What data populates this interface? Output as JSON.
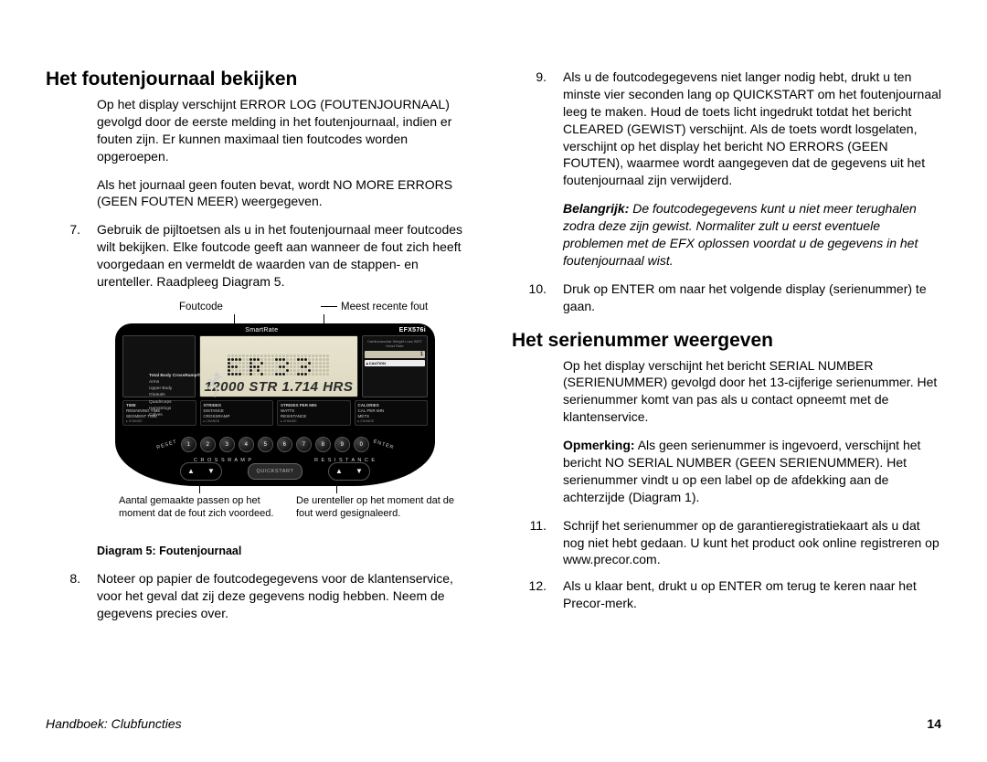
{
  "left": {
    "heading": "Het foutenjournaal bekijken",
    "p1": "Op het display verschijnt ERROR LOG (FOUTENJOURNAAL) gevolgd door de eerste melding in het foutenjournaal, indien er fouten zijn. Er kunnen maximaal tien foutcodes worden opgeroepen.",
    "p2": "Als het journaal geen fouten bevat, wordt NO MORE ERRORS (GEEN FOUTEN MEER) weergegeven.",
    "item7_num": "7.",
    "item7": "Gebruik de pijltoetsen als u in het foutenjournaal meer foutcodes wilt bekijken. Elke foutcode geeft aan wanneer de fout zich heeft voorgedaan en vermeldt de waarden van de stappen- en urenteller. Raadpleeg Diagram 5.",
    "diagram": {
      "top_left_label": "Foutcode",
      "top_right_label": "Meest recente fout",
      "bottom_left_label": "Aantal gemaakte passen op het moment dat de fout zich voordeed.",
      "bottom_right_label": "De urenteller op het moment dat de fout werd gesignaleerd.",
      "caption": "Diagram 5: Foutenjournaal",
      "topbar": {
        "smartrate": "SmartRate",
        "model": "EFX576i"
      },
      "legend_title": "Total Body CrossRamp®",
      "legend_lines": [
        "Arms",
        "Upper Body",
        "Gluteals",
        "Quadriceps",
        "Hamstrings",
        "Calves"
      ],
      "lcd_secondary": "12000 STR 1.714 HRS",
      "metrics_col1": [
        "TIME",
        "REMAINING TIME",
        "SEGMENT TIME"
      ],
      "metrics_col2": [
        "STRIDES",
        "DISTANCE",
        "CROSSRAMP"
      ],
      "metrics_col3": [
        "STRIDES PER MIN",
        "WATTS",
        "RESISTANCE"
      ],
      "metrics_col4": [
        "CALORIES",
        "CAL PER MIN",
        "METS"
      ],
      "metrics_change": "▸ CHANGE",
      "keys": [
        "1",
        "2",
        "3",
        "4",
        "5",
        "6",
        "7",
        "8",
        "9",
        "0"
      ],
      "reset": "RESET",
      "enter": "ENTER",
      "crossramp": "C R O S S R A M P",
      "resistance": "R E S I S T A N C E",
      "quickstart": "QUICKSTART",
      "caution": "▲CAUTION",
      "rblk_line": "Cardiovascular  Weight Loss  WDT  Heart Rate"
    },
    "item8_num": "8.",
    "item8": "Noteer op papier de foutcodegegevens voor de klantenservice, voor het geval dat zij deze gegevens nodig hebben. Neem de gegevens precies over."
  },
  "right": {
    "item9_num": "9.",
    "item9": "Als u de foutcodegegevens niet langer nodig hebt, drukt u ten minste vier seconden lang op QUICKSTART om het foutenjournaal leeg te maken. Houd de toets licht ingedrukt totdat het bericht CLEARED (GEWIST) verschijnt. Als de toets wordt losgelaten, verschijnt op het display het bericht NO ERRORS (GEEN FOUTEN), waarmee wordt aangegeven dat de gegevens uit het foutenjournaal zijn verwijderd.",
    "important_label": "Belangrijk:",
    "important": "De foutcodegegevens kunt u niet meer terughalen zodra deze zijn gewist. Normaliter zult u eerst eventuele problemen met de EFX oplossen voordat u de gegevens in het foutenjournaal wist.",
    "item10_num": "10.",
    "item10": "Druk op ENTER om naar het volgende display (serienummer) te gaan.",
    "heading2": "Het serienummer weergeven",
    "p_serial": "Op het display verschijnt het bericht SERIAL NUMBER (SERIENUMMER) gevolgd door het 13-cijferige serienummer. Het serienummer komt van pas als u contact opneemt met de klantenservice.",
    "note_label": "Opmerking:",
    "note": "Als geen serienummer is ingevoerd, verschijnt het bericht NO SERIAL NUMBER (GEEN SERIENUMMER). Het serienummer vindt u op een label op de afdekking aan de achterzijde (Diagram 1).",
    "item11_num": "11.",
    "item11": "Schrijf het serienummer op de garantieregistratiekaart als u dat nog niet hebt gedaan. U kunt het product ook online registreren op www.precor.com.",
    "item12_num": "12.",
    "item12": "Als u klaar bent, drukt u op ENTER om terug te keren naar het Precor-merk."
  },
  "footer": {
    "title": "Handboek: Clubfuncties",
    "page": "14"
  },
  "er33_pattern": [
    [
      0,
      0,
      0,
      0,
      0,
      0,
      0,
      0,
      0,
      0,
      0,
      0,
      0,
      0,
      0,
      0,
      0,
      0,
      0,
      0,
      0,
      0,
      0,
      0,
      0,
      0,
      0,
      0
    ],
    [
      1,
      1,
      1,
      1,
      0,
      0,
      1,
      1,
      1,
      0,
      0,
      0,
      0,
      1,
      1,
      1,
      0,
      0,
      0,
      1,
      1,
      1,
      0,
      0,
      0,
      0,
      0,
      0
    ],
    [
      1,
      0,
      0,
      0,
      0,
      0,
      1,
      0,
      0,
      1,
      0,
      0,
      0,
      0,
      0,
      0,
      1,
      0,
      0,
      0,
      0,
      0,
      1,
      0,
      0,
      0,
      0,
      0
    ],
    [
      1,
      1,
      1,
      0,
      0,
      0,
      1,
      1,
      1,
      0,
      0,
      0,
      0,
      0,
      1,
      1,
      0,
      0,
      0,
      0,
      1,
      1,
      0,
      0,
      0,
      0,
      0,
      0
    ],
    [
      1,
      0,
      0,
      0,
      0,
      0,
      1,
      0,
      1,
      0,
      0,
      0,
      0,
      0,
      0,
      0,
      1,
      0,
      0,
      0,
      0,
      0,
      1,
      0,
      0,
      0,
      0,
      0
    ],
    [
      1,
      1,
      1,
      1,
      0,
      0,
      1,
      0,
      0,
      1,
      0,
      0,
      0,
      1,
      1,
      1,
      0,
      0,
      0,
      1,
      1,
      1,
      0,
      0,
      0,
      0,
      0,
      0
    ]
  ]
}
